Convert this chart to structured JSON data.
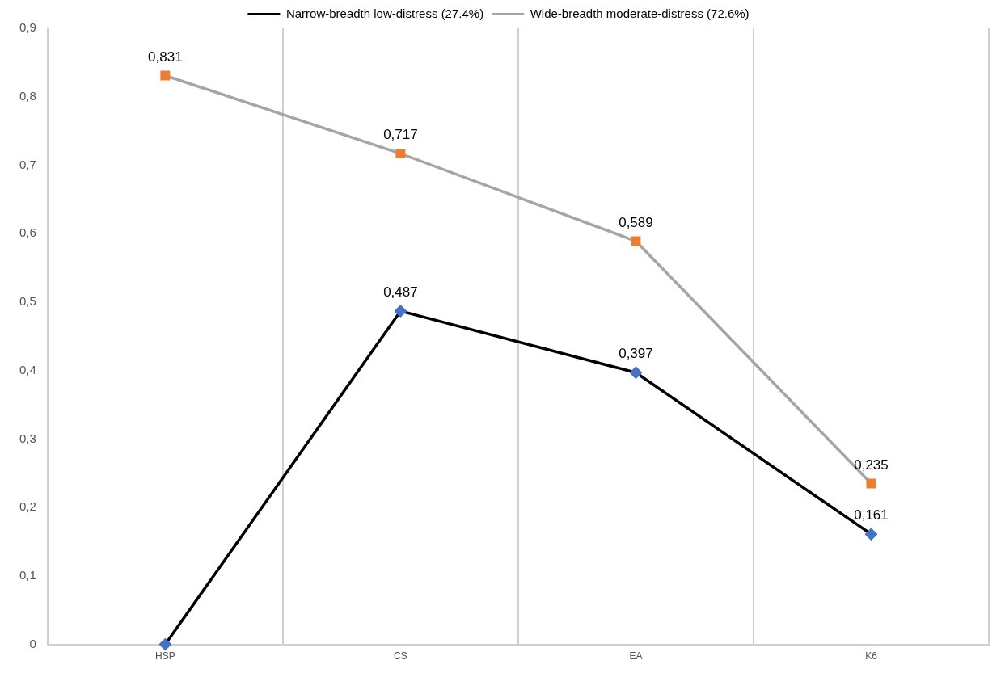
{
  "chart_data": {
    "type": "line",
    "categories": [
      "HSP",
      "CS",
      "EA",
      "K6"
    ],
    "series": [
      {
        "name": "Narrow-breadth low-distress (27.4%)",
        "color": "#000000",
        "colors": [
          "#4472c4",
          "#4472c4",
          "#4472c4",
          "#4472c4"
        ],
        "marker": "diamond",
        "values": [
          0,
          0.487,
          0.397,
          0.161
        ],
        "value_labels": [
          null,
          "0,487",
          "0,397",
          "0,161"
        ]
      },
      {
        "name": "Wide-breadth moderate-distress (72.6%)",
        "color": "#a5a5a5",
        "colors": [
          "#ed7d31",
          "#ed7d31",
          "#ed7d31",
          "#ed7d31"
        ],
        "marker": "square",
        "values": [
          0.831,
          0.717,
          0.589,
          0.235
        ],
        "value_labels": [
          "0,831",
          "0,717",
          "0,589",
          "0,235"
        ]
      }
    ],
    "ylim": [
      0,
      0.9
    ],
    "yticks": [
      0,
      {
        "value": 0.1,
        "label": "0,1"
      },
      {
        "value": 0.2,
        "label": "0,2"
      },
      {
        "value": 0.3,
        "label": "0,3"
      },
      {
        "value": 0.4,
        "label": "0,4"
      },
      {
        "value": 0.5,
        "label": "0,5"
      },
      {
        "value": 0.6,
        "label": "0,6"
      },
      {
        "value": 0.7,
        "label": "0,7"
      },
      {
        "value": 0.8,
        "label": "0,8"
      },
      {
        "value": 0.9,
        "label": "0,9"
      }
    ],
    "grid": "x",
    "legend": "top",
    "line_style": "solid"
  }
}
